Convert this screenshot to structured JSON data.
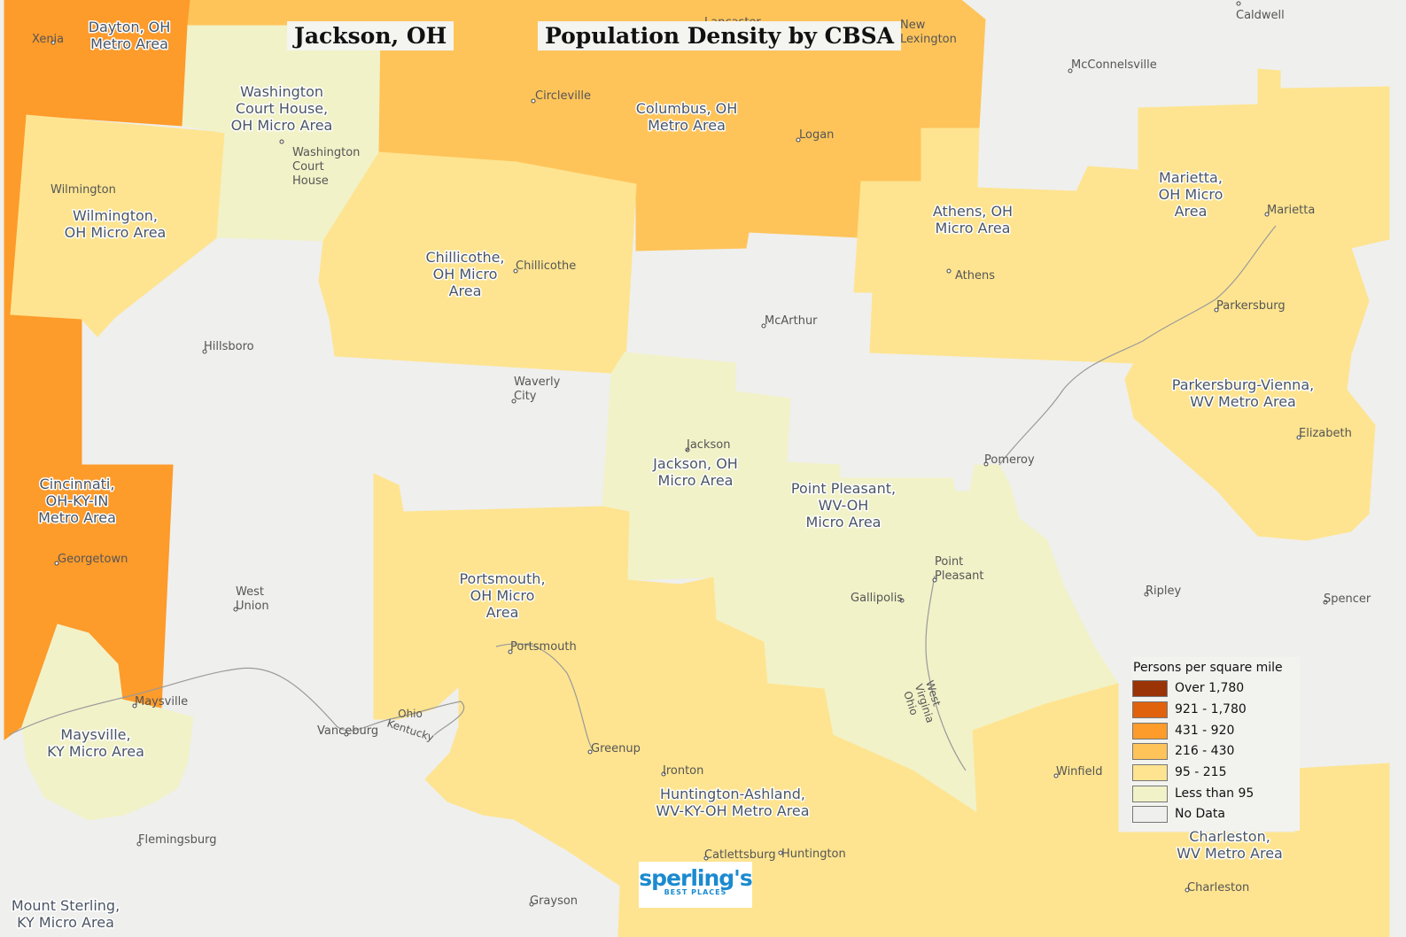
{
  "title": "Jackson, OH",
  "subtitle": "Population Density by CBSA",
  "colors": {
    "no_data": "#efefed",
    "less_than_95": "#f1f2c8",
    "95_215": "#fee490",
    "216_430": "#fec45a",
    "431_920": "#fd9b2b",
    "921_1780": "#e1620d",
    "over_1780": "#9a3306",
    "river": "#9a9a9a"
  },
  "legend": {
    "title": "Persons per square mile",
    "items": [
      {
        "label": "Over 1,780",
        "color": "#9a3306"
      },
      {
        "label": "921 - 1,780",
        "color": "#e1620d"
      },
      {
        "label": "431 - 920",
        "color": "#fd9b2b"
      },
      {
        "label": "216 - 430",
        "color": "#fec45a"
      },
      {
        "label": "95 - 215",
        "color": "#fee490"
      },
      {
        "label": "Less than 95",
        "color": "#f1f2c8"
      },
      {
        "label": "No Data",
        "color": "#efefed"
      }
    ]
  },
  "regions": [
    {
      "lines": [
        "Dayton, OH",
        "Metro Area"
      ],
      "class": "431 - 920"
    },
    {
      "lines": [
        "Washington",
        "Court House,",
        "OH Micro Area"
      ],
      "class": "Less than 95"
    },
    {
      "lines": [
        "Columbus, OH",
        "Metro Area"
      ],
      "class": "216 - 430"
    },
    {
      "lines": [
        "Wilmington,",
        "OH Micro Area"
      ],
      "class": "95 - 215"
    },
    {
      "lines": [
        "Chillicothe,",
        "OH Micro",
        "Area"
      ],
      "class": "95 - 215"
    },
    {
      "lines": [
        "Athens, OH",
        "Micro Area"
      ],
      "class": "95 - 215"
    },
    {
      "lines": [
        "Marietta,",
        "OH Micro",
        "Area"
      ],
      "class": "95 - 215"
    },
    {
      "lines": [
        "Parkersburg-Vienna,",
        "WV Metro Area"
      ],
      "class": "95 - 215"
    },
    {
      "lines": [
        "Jackson, OH",
        "Micro Area"
      ],
      "class": "Less than 95"
    },
    {
      "lines": [
        "Point Pleasant,",
        "WV-OH",
        "Micro Area"
      ],
      "class": "Less than 95"
    },
    {
      "lines": [
        "Cincinnati,",
        "OH-KY-IN",
        "Metro Area"
      ],
      "class": "431 - 920"
    },
    {
      "lines": [
        "Portsmouth,",
        "OH Micro",
        "Area"
      ],
      "class": "95 - 215"
    },
    {
      "lines": [
        "Maysville,",
        "KY Micro Area"
      ],
      "class": "Less than 95"
    },
    {
      "lines": [
        "Huntington-Ashland,",
        "WV-KY-OH Metro Area"
      ],
      "class": "95 - 215"
    },
    {
      "lines": [
        "Charleston,",
        "WV Metro Area"
      ],
      "class": "95 - 215"
    },
    {
      "lines": [
        "Mount Sterling,",
        "KY Micro Area"
      ],
      "class": "No Data"
    }
  ],
  "cities": [
    {
      "lines": [
        "Xenia"
      ]
    },
    {
      "lines": [
        "Lancaster"
      ]
    },
    {
      "lines": [
        "New",
        "Lexington"
      ]
    },
    {
      "lines": [
        "Caldwell"
      ]
    },
    {
      "lines": [
        "McConnelsville"
      ]
    },
    {
      "lines": [
        "Circleville"
      ]
    },
    {
      "lines": [
        "Logan"
      ]
    },
    {
      "lines": [
        "Washington",
        "Court",
        "House"
      ]
    },
    {
      "lines": [
        "Wilmington"
      ]
    },
    {
      "lines": [
        "Chillicothe"
      ]
    },
    {
      "lines": [
        "Athens"
      ]
    },
    {
      "lines": [
        "Marietta"
      ]
    },
    {
      "lines": [
        "Parkersburg"
      ]
    },
    {
      "lines": [
        "Hillsboro"
      ]
    },
    {
      "lines": [
        "McArthur"
      ]
    },
    {
      "lines": [
        "Waverly",
        "City"
      ]
    },
    {
      "lines": [
        "Jackson"
      ]
    },
    {
      "lines": [
        "Pomeroy"
      ]
    },
    {
      "lines": [
        "Elizabeth"
      ]
    },
    {
      "lines": [
        "Georgetown"
      ]
    },
    {
      "lines": [
        "West",
        "Union"
      ]
    },
    {
      "lines": [
        "Point",
        "Pleasant"
      ]
    },
    {
      "lines": [
        "Gallipolis"
      ]
    },
    {
      "lines": [
        "Ripley"
      ]
    },
    {
      "lines": [
        "Spencer"
      ]
    },
    {
      "lines": [
        "Portsmouth"
      ]
    },
    {
      "lines": [
        "Maysville"
      ]
    },
    {
      "lines": [
        "Vanceburg"
      ]
    },
    {
      "lines": [
        "Greenup"
      ]
    },
    {
      "lines": [
        "Ironton"
      ]
    },
    {
      "lines": [
        "Winfield"
      ]
    },
    {
      "lines": [
        "Flemingsburg"
      ]
    },
    {
      "lines": [
        "Catlettsburg"
      ]
    },
    {
      "lines": [
        "Huntington"
      ]
    },
    {
      "lines": [
        "Charleston"
      ]
    },
    {
      "lines": [
        "Grayson"
      ]
    }
  ],
  "state_labels": [
    "Ohio",
    "Kentucky",
    "West",
    "Virginia",
    "Ohio"
  ],
  "logo": {
    "main": "sperling's",
    "sub": "BEST PLACES"
  }
}
